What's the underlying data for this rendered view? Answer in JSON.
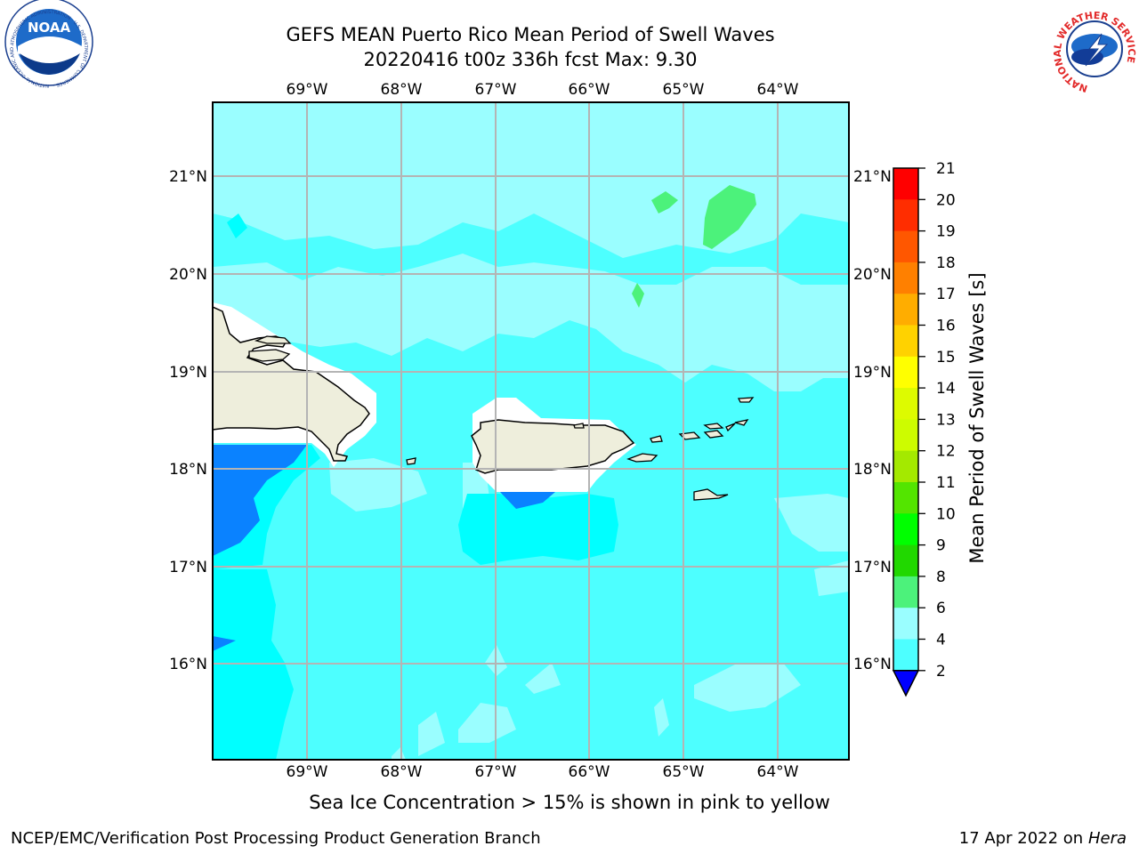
{
  "title": {
    "line1": "GEFS MEAN Puerto Rico Mean Period of Swell Waves",
    "line2": "20220416 t00z 336h fcst   Max: 9.30"
  },
  "map": {
    "lon_labels": [
      "69°W",
      "68°W",
      "67°W",
      "66°W",
      "65°W",
      "64°W"
    ],
    "lat_labels": [
      "21°N",
      "20°N",
      "19°N",
      "18°N",
      "17°N",
      "16°N"
    ],
    "extent": {
      "lon_min": -70.0,
      "lon_max": -63.25,
      "lat_min": 15.0,
      "lat_max": 21.75
    }
  },
  "colorbar": {
    "title": "Mean Period of Swell Waves [s]",
    "levels": [
      2,
      4,
      6,
      8,
      9,
      10,
      11,
      12,
      13,
      14,
      15,
      16,
      17,
      18,
      19,
      20,
      21
    ],
    "colors": [
      "#0a82ff",
      "#00ffff",
      "#4dffff",
      "#9afeff",
      "#4cf27b",
      "#21d800",
      "#00ff00",
      "#53e500",
      "#a4e900",
      "#cdfc00",
      "#ddfb00",
      "#ffff00",
      "#ffd200",
      "#ffad00",
      "#ff8000",
      "#ff5700",
      "#ff2d00",
      "#ff0000"
    ],
    "under_color": "#0000ff"
  },
  "sub_note": "Sea Ice Concentration > 15% is shown in pink to yellow",
  "footer": {
    "left": "NCEP/EMC/Verification Post Processing Product Generation Branch",
    "date": "17 Apr 2022 on",
    "host": "Hera"
  },
  "logos": {
    "noaa_text": "NOAA",
    "noaa_ring": "NATIONAL OCEANIC AND ATMOSPHERIC ADMINISTRATION · U.S. DEPARTMENT OF COMMERCE ·",
    "nws_ring": "NATIONAL WEATHER SERVICE"
  }
}
